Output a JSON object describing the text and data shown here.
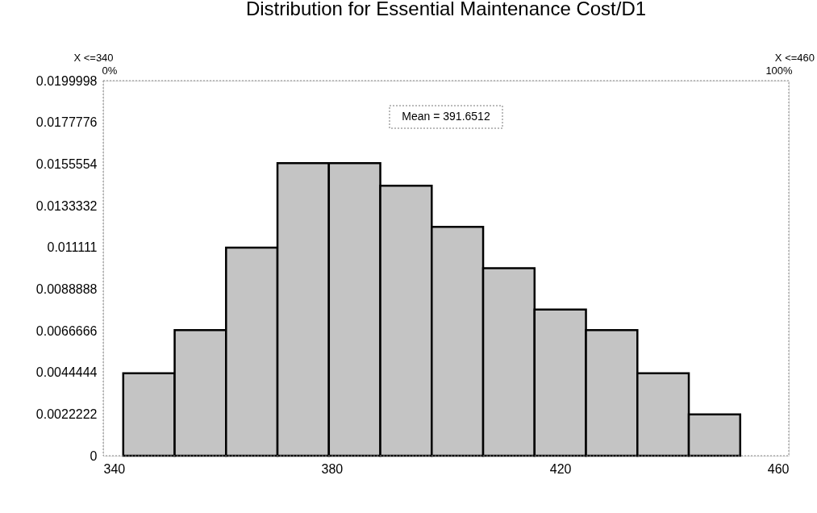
{
  "chart_data": {
    "type": "histogram",
    "title": "Distribution for Essential Maintenance Cost/D1",
    "bins": [
      343.5,
      352.5,
      361.5,
      370.5,
      379.5,
      388.5,
      397.5,
      406.5,
      415.5,
      424.5,
      433.5,
      442.5,
      451.5
    ],
    "values": [
      0.0044,
      0.0067,
      0.0111,
      0.0156,
      0.0156,
      0.0144,
      0.0122,
      0.01,
      0.0078,
      0.0067,
      0.0044,
      0.0022
    ],
    "color": "#c4c4c4",
    "xlim": [
      340,
      460
    ],
    "xticks": [
      340,
      380,
      420,
      460
    ],
    "ylim": [
      0,
      0.0199998
    ],
    "yticks": [
      0,
      0.0022222,
      0.0044444,
      0.0066666,
      0.0088888,
      0.011111,
      0.0133332,
      0.0155554,
      0.0177776,
      0.0199998
    ],
    "annotations": [
      "X <=340",
      "0%",
      "X <=460",
      "100%",
      "Mean = 391.6512"
    ]
  }
}
